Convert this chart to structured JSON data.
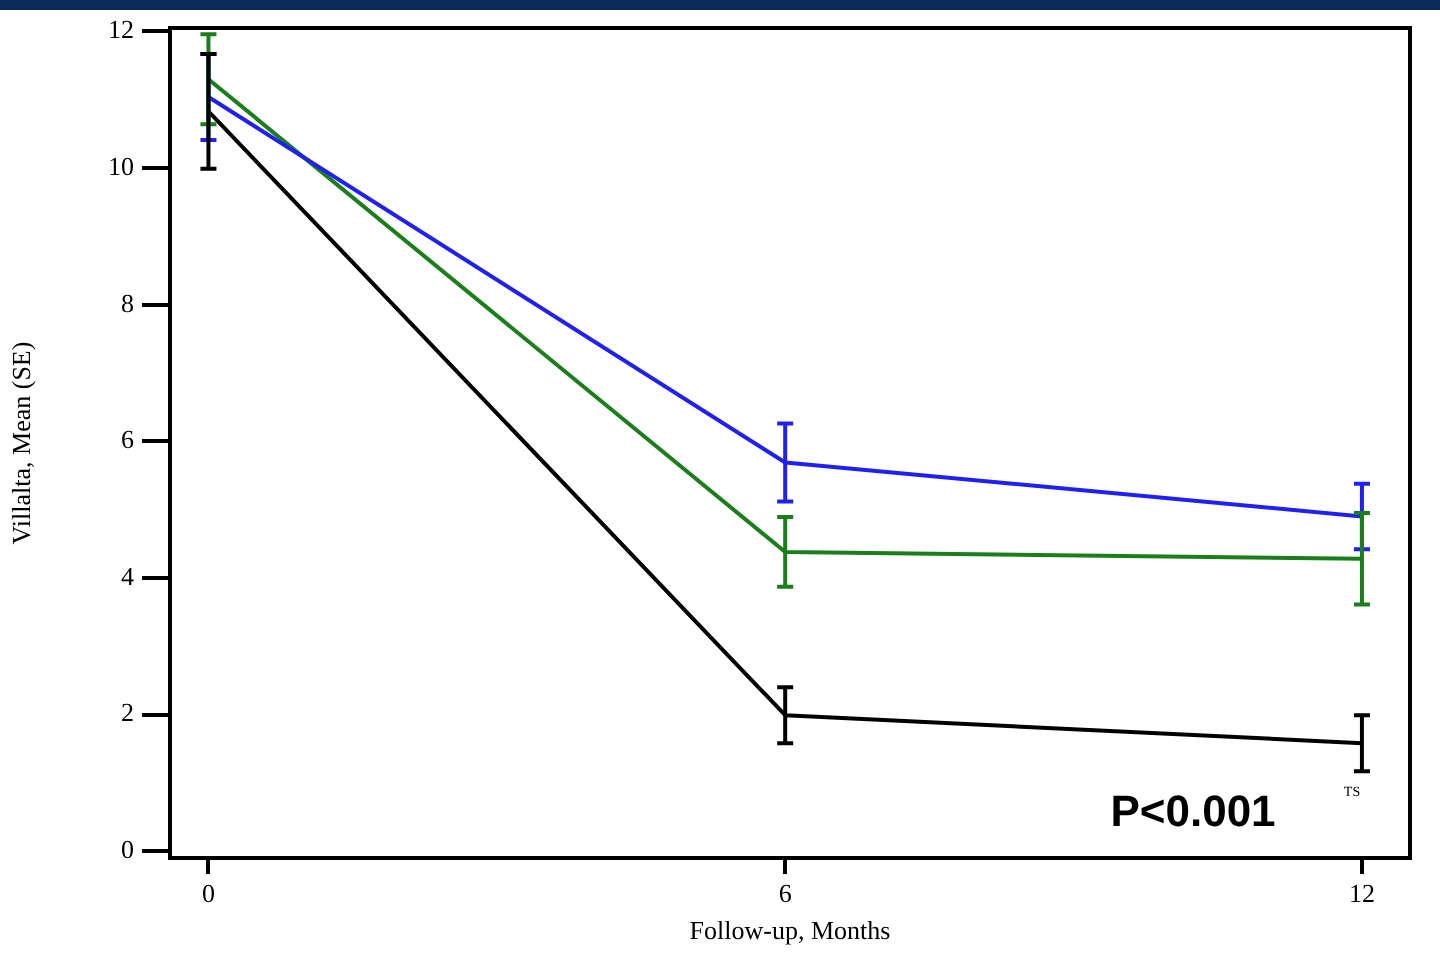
{
  "chart_data": {
    "type": "line",
    "ylabel": "Villalta, Mean (SE)",
    "xlabel": "Follow-up, Months",
    "x": [
      0,
      6,
      12
    ],
    "xlim": [
      -0.4,
      12.5
    ],
    "xticks": [
      0,
      6,
      12
    ],
    "ylim": [
      -0.1,
      12.05
    ],
    "yticks": [
      0,
      2,
      4,
      6,
      8,
      10,
      12
    ],
    "series": [
      {
        "color": "#2020f0",
        "values": [
          11.04,
          5.69,
          4.9
        ],
        "errors": [
          0.63,
          0.57,
          0.48
        ]
      },
      {
        "color": "#1a7f1a",
        "values": [
          11.3,
          4.38,
          4.28
        ],
        "errors": [
          0.66,
          0.51,
          0.67
        ]
      },
      {
        "color": "#000000",
        "values": [
          10.83,
          1.99,
          1.58
        ],
        "errors": [
          0.84,
          0.41,
          0.41
        ]
      }
    ],
    "annotations": [
      "P<0.001",
      "TS"
    ],
    "grid": false,
    "legend": false,
    "marker": "none",
    "line_style": "solid"
  }
}
